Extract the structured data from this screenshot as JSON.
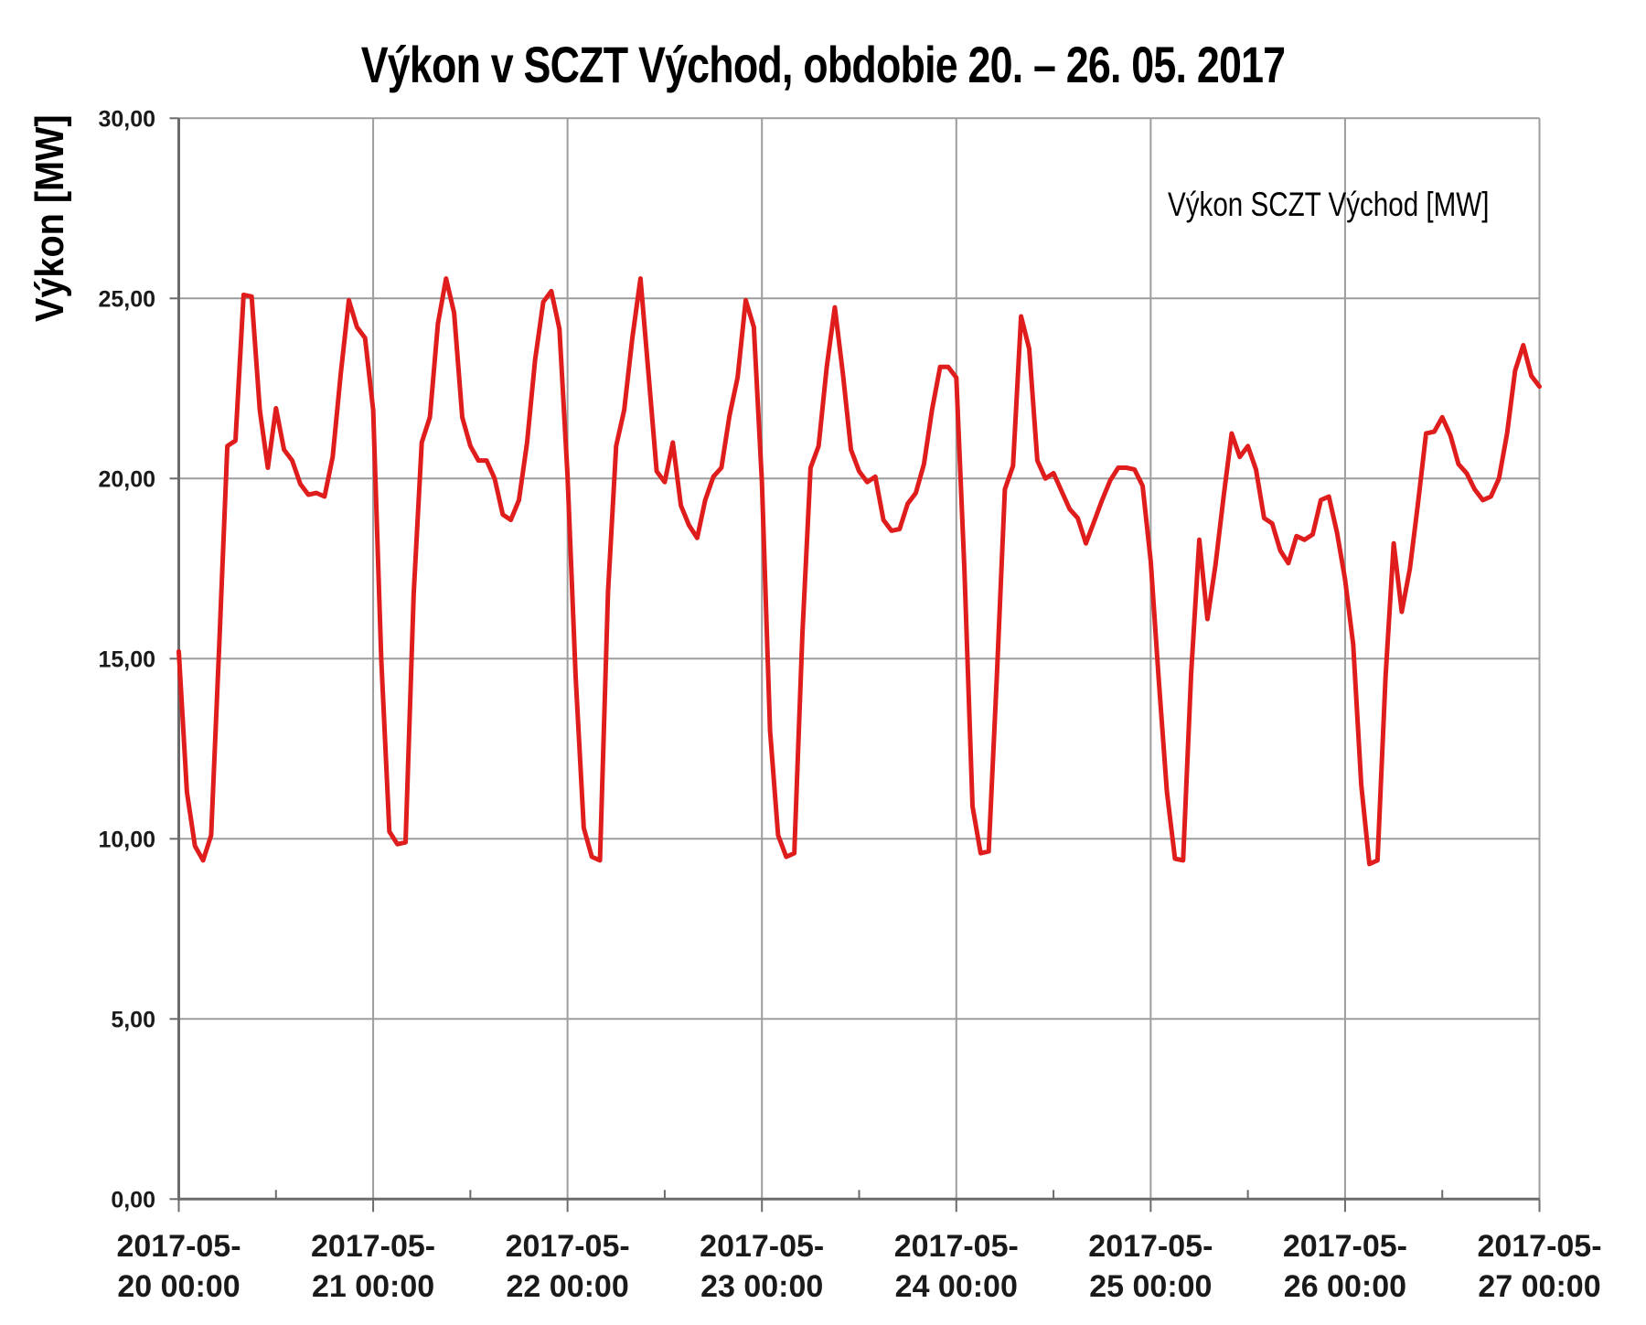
{
  "chart_data": {
    "type": "line",
    "title": "Výkon v SCZT Východ, obdobie 20. – 26. 05. 2017",
    "ylabel": "Výkon [MW]",
    "legend_label": "Výkon SCZT Východ [MW]",
    "series_color": "#e01d1d",
    "grid_color": "#9d9d9d",
    "axis_color": "#6b6b6b",
    "ylim": [
      0,
      30
    ],
    "y_ticks": [
      "0,00",
      "5,00",
      "10,00",
      "15,00",
      "20,00",
      "25,00",
      "30,00"
    ],
    "x_ticks": [
      [
        "2017-05-",
        "20 00:00"
      ],
      [
        "2017-05-",
        "21 00:00"
      ],
      [
        "2017-05-",
        "22 00:00"
      ],
      [
        "2017-05-",
        "23 00:00"
      ],
      [
        "2017-05-",
        "24 00:00"
      ],
      [
        "2017-05-",
        "25 00:00"
      ],
      [
        "2017-05-",
        "26 00:00"
      ],
      [
        "2017-05-",
        "27 00:00"
      ]
    ],
    "x_unit": "hours",
    "values": [
      15.2,
      11.3,
      9.8,
      9.4,
      10.1,
      15.4,
      20.9,
      21.05,
      25.1,
      25.05,
      21.9,
      20.3,
      21.95,
      20.8,
      20.5,
      19.85,
      19.55,
      19.6,
      19.5,
      20.6,
      22.9,
      24.95,
      24.2,
      23.9,
      21.9,
      15.0,
      10.2,
      9.85,
      9.9,
      16.8,
      21.0,
      21.7,
      24.3,
      25.55,
      24.6,
      21.7,
      20.9,
      20.5,
      20.5,
      20.0,
      19.0,
      18.85,
      19.4,
      21.0,
      23.3,
      24.9,
      25.2,
      24.15,
      20.1,
      14.5,
      10.3,
      9.5,
      9.4,
      16.85,
      20.9,
      21.9,
      23.9,
      25.55,
      22.9,
      20.2,
      19.9,
      21.0,
      19.25,
      18.7,
      18.35,
      19.4,
      20.05,
      20.3,
      21.75,
      22.8,
      24.95,
      24.2,
      19.9,
      13.0,
      10.1,
      9.5,
      9.6,
      15.7,
      20.3,
      20.9,
      23.1,
      24.75,
      22.9,
      20.8,
      20.2,
      19.9,
      20.05,
      18.85,
      18.55,
      18.6,
      19.3,
      19.6,
      20.4,
      21.9,
      23.1,
      23.1,
      22.8,
      17.5,
      10.9,
      9.6,
      9.65,
      14.5,
      19.7,
      20.35,
      24.5,
      23.6,
      20.5,
      20.0,
      20.15,
      19.65,
      19.15,
      18.9,
      18.2,
      18.8,
      19.4,
      19.95,
      20.3,
      20.3,
      20.25,
      19.8,
      17.7,
      14.4,
      11.3,
      9.45,
      9.4,
      14.6,
      18.3,
      16.1,
      17.6,
      19.5,
      21.25,
      20.6,
      20.9,
      20.25,
      18.9,
      18.75,
      18.0,
      17.65,
      18.4,
      18.3,
      18.45,
      19.4,
      19.5,
      18.5,
      17.2,
      15.4,
      11.5,
      9.3,
      9.4,
      14.5,
      18.2,
      16.3,
      17.5,
      19.3,
      21.25,
      21.3,
      21.7,
      21.2,
      20.4,
      20.15,
      19.7,
      19.4,
      19.5,
      20.0,
      21.25,
      23.0,
      23.7,
      22.85,
      22.55
    ]
  }
}
